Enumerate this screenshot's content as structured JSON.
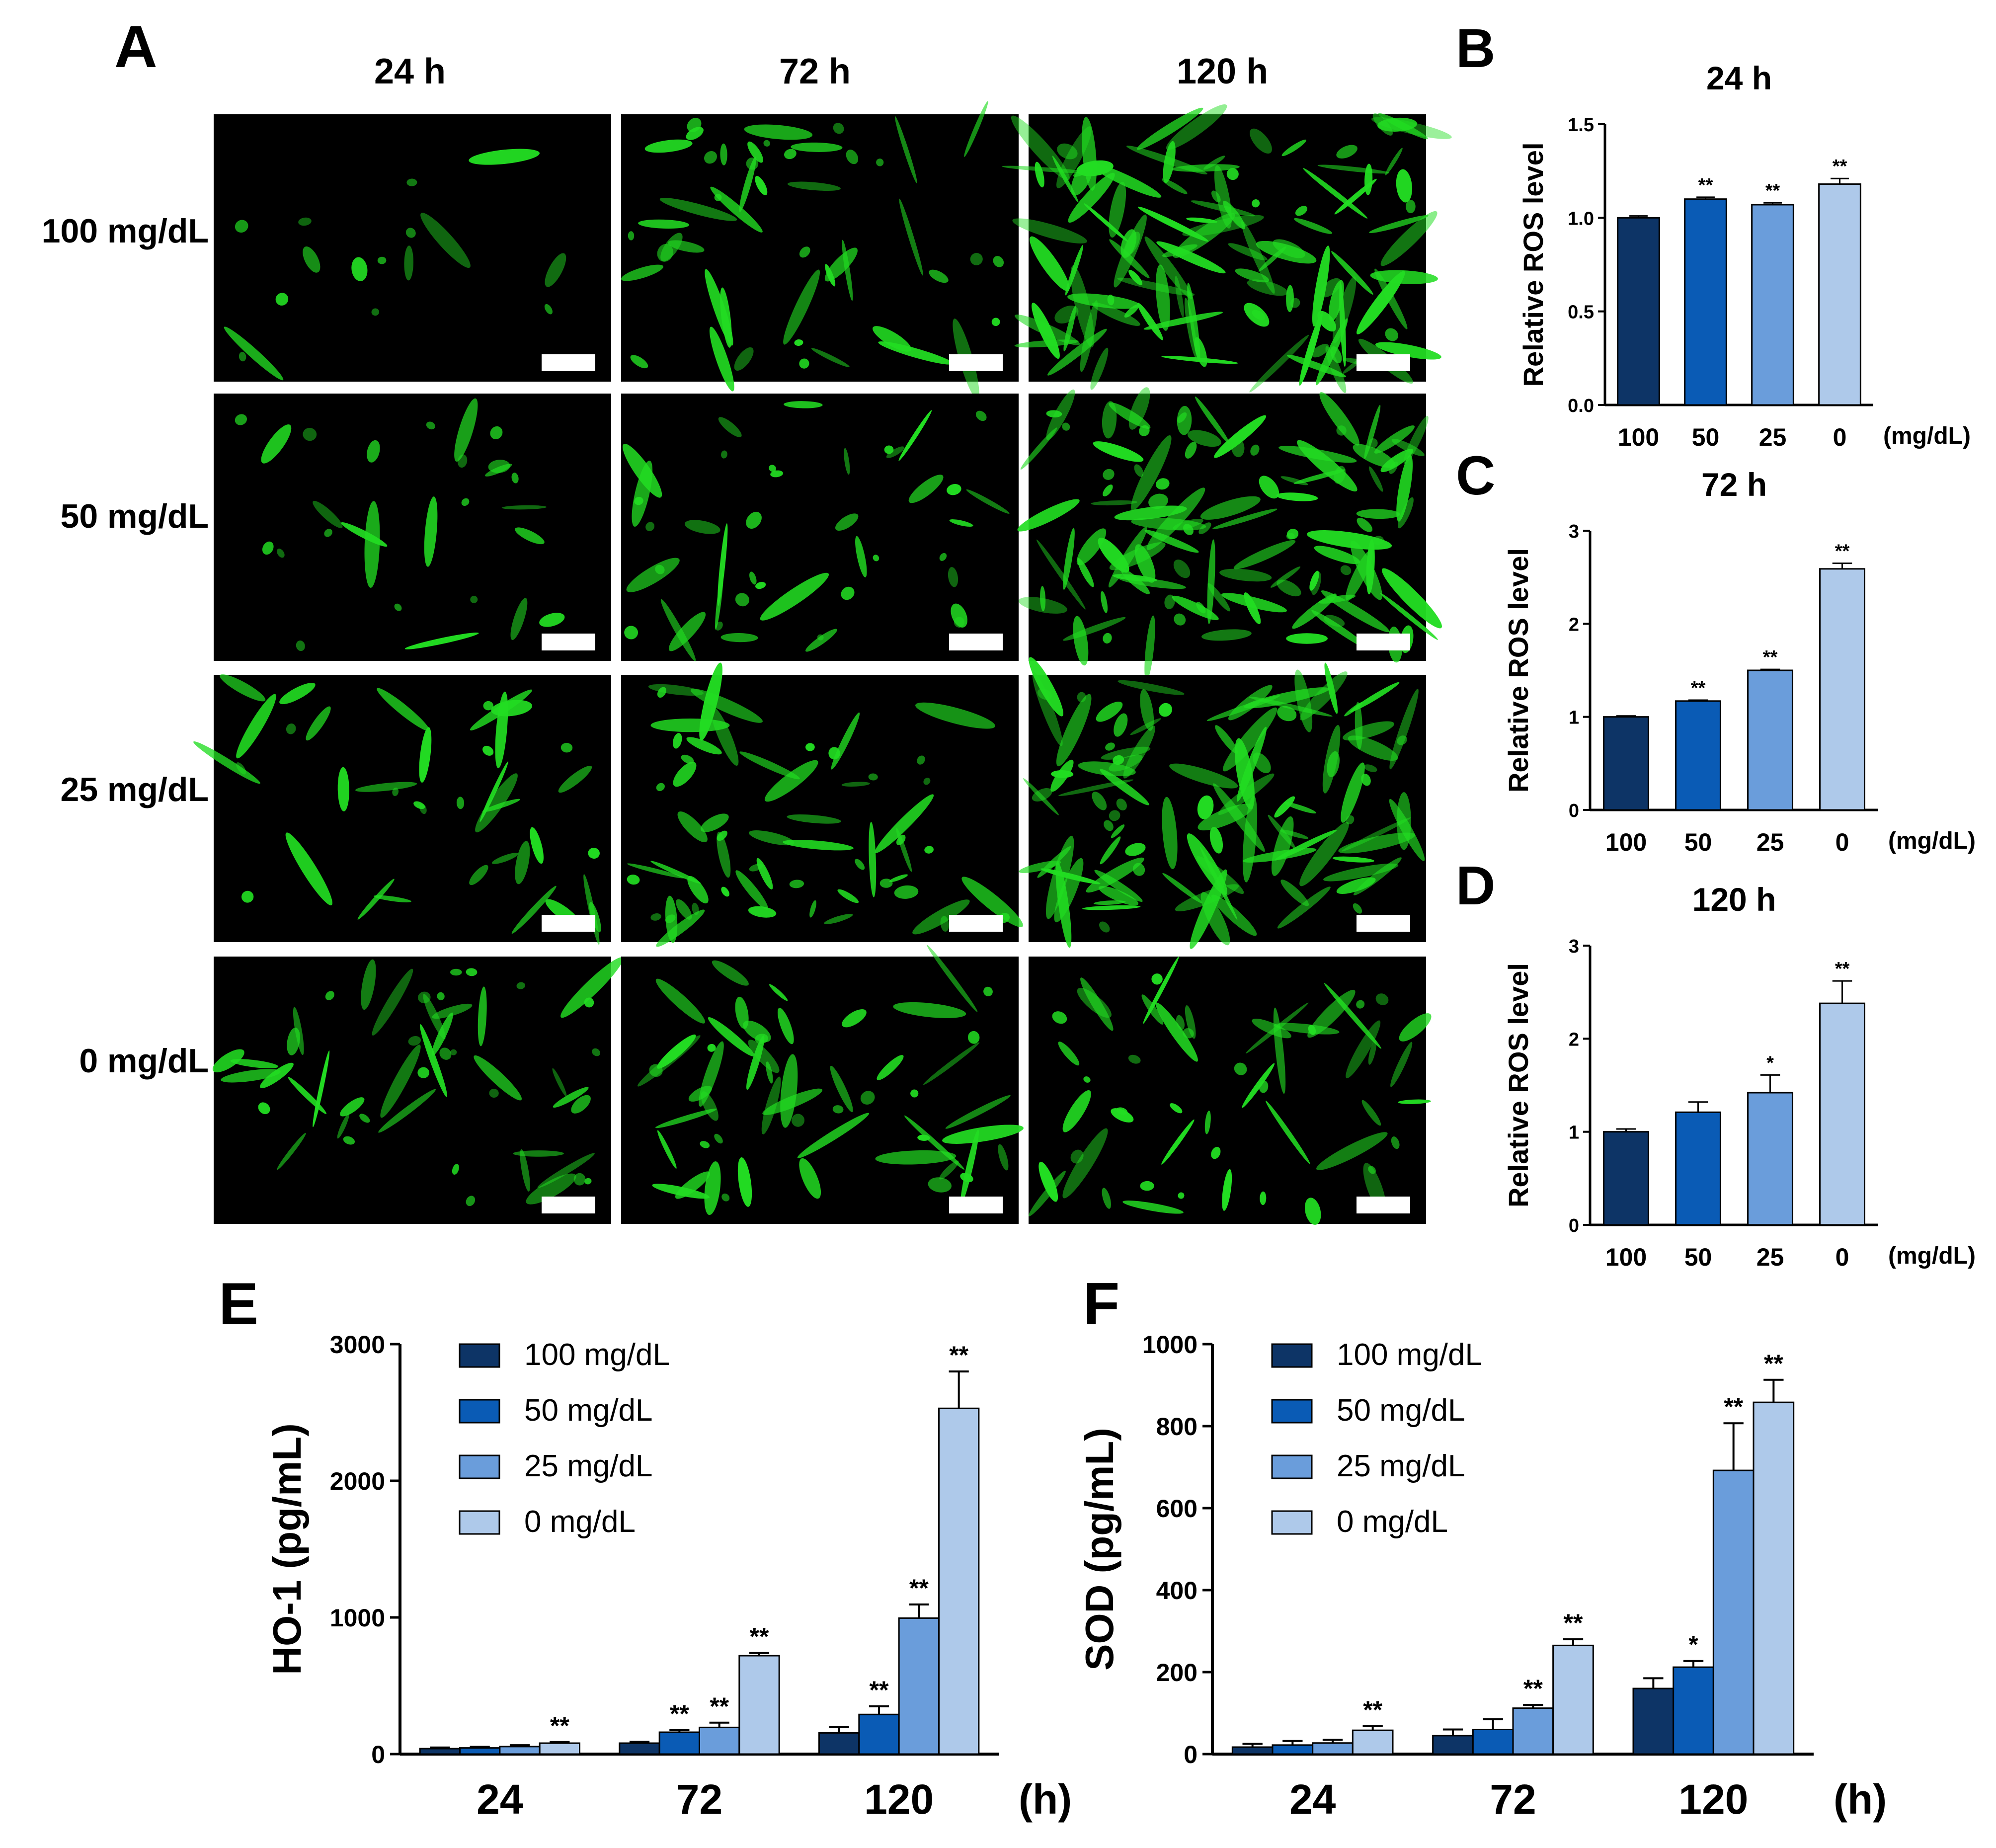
{
  "panels": {
    "A": "A",
    "B": "B",
    "C": "C",
    "D": "D",
    "E": "E",
    "F": "F"
  },
  "micrographs": {
    "time_headers": [
      "24 h",
      "72 h",
      "120 h"
    ],
    "dose_labels": [
      "100 mg/dL",
      "50 mg/dL",
      "25 mg/dL",
      "0 mg/dL"
    ],
    "fluorescence_color": "#22dd22",
    "background_color": "#000000",
    "cell_density": [
      [
        0.05,
        0.35,
        0.95
      ],
      [
        0.15,
        0.3,
        0.9
      ],
      [
        0.25,
        0.45,
        0.85
      ],
      [
        0.35,
        0.4,
        0.4
      ]
    ]
  },
  "colors": {
    "series": [
      "#0d3466",
      "#0a5bb5",
      "#6a9ddb",
      "#aec9ea"
    ]
  },
  "chart_data": [
    {
      "id": "B",
      "type": "bar",
      "title": "24 h",
      "ylabel": "Relative ROS level",
      "xlabel": "",
      "unit_label": "(mg/dL)",
      "categories": [
        "100",
        "50",
        "25",
        "0"
      ],
      "values": [
        1.0,
        1.1,
        1.07,
        1.18
      ],
      "errors": [
        0.01,
        0.01,
        0.01,
        0.03
      ],
      "significance": [
        "",
        "**",
        "**",
        "**"
      ],
      "ylim": [
        0,
        1.5
      ],
      "yticks": [
        "0.0",
        "0.5",
        "1.0",
        "1.5"
      ],
      "ytick_values": [
        0,
        0.5,
        1.0,
        1.5
      ]
    },
    {
      "id": "C",
      "type": "bar",
      "title": "72 h",
      "ylabel": "Relative ROS level",
      "xlabel": "",
      "unit_label": "(mg/dL)",
      "categories": [
        "100",
        "50",
        "25",
        "0"
      ],
      "values": [
        1.0,
        1.17,
        1.5,
        2.59
      ],
      "errors": [
        0.01,
        0.01,
        0.01,
        0.06
      ],
      "significance": [
        "",
        "**",
        "**",
        "**"
      ],
      "ylim": [
        0,
        3
      ],
      "yticks": [
        "0",
        "1",
        "2",
        "3"
      ],
      "ytick_values": [
        0,
        1,
        2,
        3
      ]
    },
    {
      "id": "D",
      "type": "bar",
      "title": "120 h",
      "ylabel": "Relative ROS level",
      "xlabel": "",
      "unit_label": "(mg/dL)",
      "categories": [
        "100",
        "50",
        "25",
        "0"
      ],
      "values": [
        1.0,
        1.21,
        1.42,
        2.38
      ],
      "errors": [
        0.03,
        0.11,
        0.19,
        0.24
      ],
      "significance": [
        "",
        "",
        "*",
        "**"
      ],
      "ylim": [
        0,
        3
      ],
      "yticks": [
        "0",
        "1",
        "2",
        "3"
      ],
      "ytick_values": [
        0,
        1,
        2,
        3
      ]
    },
    {
      "id": "E",
      "type": "bar",
      "title": "",
      "ylabel": "HO-1 (pg/mL)",
      "unit_label": "(h)",
      "categories": [
        "24",
        "72",
        "120"
      ],
      "legend_position": "top-left",
      "series": [
        {
          "name": "100 mg/dL",
          "values": [
            40,
            80,
            155
          ],
          "errors": [
            8,
            10,
            45
          ]
        },
        {
          "name": "50 mg/dL",
          "values": [
            45,
            160,
            290
          ],
          "errors": [
            8,
            15,
            60
          ]
        },
        {
          "name": "25 mg/dL",
          "values": [
            55,
            195,
            995
          ],
          "errors": [
            10,
            35,
            100
          ]
        },
        {
          "name": "0 mg/dL",
          "values": [
            80,
            720,
            2530
          ],
          "errors": [
            8,
            20,
            270
          ]
        }
      ],
      "significance": [
        [
          "",
          "",
          "",
          "**"
        ],
        [
          "",
          "**",
          "**",
          "**"
        ],
        [
          "",
          "**",
          "**",
          "**"
        ]
      ],
      "ylim": [
        0,
        3000
      ],
      "yticks": [
        "0",
        "1000",
        "2000",
        "3000"
      ],
      "ytick_values": [
        0,
        1000,
        2000,
        3000
      ]
    },
    {
      "id": "F",
      "type": "bar",
      "title": "",
      "ylabel": "SOD (pg/mL)",
      "unit_label": "(h)",
      "categories": [
        "24",
        "72",
        "120"
      ],
      "legend_position": "top-left",
      "series": [
        {
          "name": "100 mg/dL",
          "values": [
            17,
            45,
            160
          ],
          "errors": [
            8,
            15,
            25
          ]
        },
        {
          "name": "50 mg/dL",
          "values": [
            22,
            60,
            212
          ],
          "errors": [
            10,
            25,
            15
          ]
        },
        {
          "name": "25 mg/dL",
          "values": [
            27,
            112,
            692
          ],
          "errors": [
            8,
            8,
            115
          ]
        },
        {
          "name": "0 mg/dL",
          "values": [
            58,
            265,
            858
          ],
          "errors": [
            10,
            15,
            55
          ]
        }
      ],
      "significance": [
        [
          "",
          "",
          "",
          "**"
        ],
        [
          "",
          "",
          "**",
          "**"
        ],
        [
          "",
          "*",
          "**",
          "**"
        ]
      ],
      "ylim": [
        0,
        1000
      ],
      "yticks": [
        "0",
        "200",
        "400",
        "600",
        "800",
        "1000"
      ],
      "ytick_values": [
        0,
        200,
        400,
        600,
        800,
        1000
      ]
    }
  ]
}
